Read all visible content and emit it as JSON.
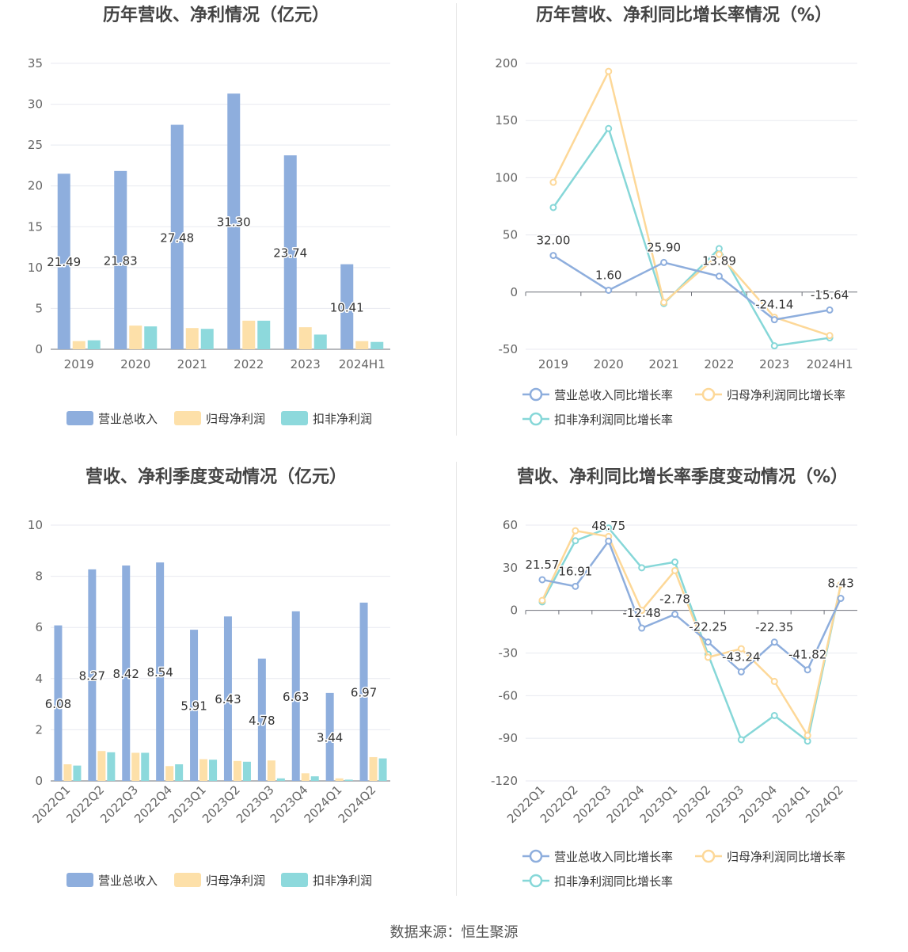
{
  "colors": {
    "revenue": "#8eaedd",
    "parent": "#fde0a9",
    "deducted": "#8dd9dc",
    "revenue_line": "#8eaedd",
    "parent_line": "#fdd898",
    "deducted_line": "#86d7d8"
  },
  "source_label": "数据来源：恒生聚源",
  "chart_data": [
    {
      "type": "bar",
      "title": "历年营收、净利情况（亿元）",
      "categories": [
        "2019",
        "2020",
        "2021",
        "2022",
        "2023",
        "2024H1"
      ],
      "ylim": [
        0,
        35
      ],
      "yticks": [
        0,
        5,
        10,
        15,
        20,
        25,
        30,
        35
      ],
      "legend": "bottom",
      "series": [
        {
          "name": "营业总收入",
          "values": [
            21.49,
            21.83,
            27.48,
            31.3,
            23.74,
            10.41
          ],
          "labels": [
            "21.49",
            "21.83",
            "27.48",
            "31.30",
            "23.74",
            "10.41"
          ]
        },
        {
          "name": "归母净利润",
          "values": [
            1.0,
            2.9,
            2.6,
            3.5,
            2.7,
            1.0
          ]
        },
        {
          "name": "扣非净利润",
          "values": [
            1.1,
            2.8,
            2.5,
            3.5,
            1.8,
            0.9
          ]
        }
      ]
    },
    {
      "type": "line",
      "title": "历年营收、净利同比增长率情况（%）",
      "categories": [
        "2019",
        "2020",
        "2021",
        "2022",
        "2023",
        "2024H1"
      ],
      "ylim": [
        -50,
        200
      ],
      "yticks": [
        -50,
        0,
        50,
        100,
        150,
        200
      ],
      "legend": "bottom",
      "series": [
        {
          "name": "营业总收入同比增长率",
          "values": [
            32.0,
            1.6,
            25.9,
            13.89,
            -24.14,
            -15.64
          ],
          "labels": [
            "32.00",
            "1.60",
            "25.90",
            "13.89",
            "-24.14",
            "-15.64"
          ]
        },
        {
          "name": "归母净利润同比增长率",
          "values": [
            96,
            193,
            -9,
            33,
            -22,
            -38
          ]
        },
        {
          "name": "扣非净利润同比增长率",
          "values": [
            74,
            143,
            -10,
            38,
            -47,
            -40
          ]
        }
      ]
    },
    {
      "type": "bar",
      "title": "营收、净利季度变动情况（亿元）",
      "categories": [
        "2022Q1",
        "2022Q2",
        "2022Q3",
        "2022Q4",
        "2023Q1",
        "2023Q2",
        "2023Q3",
        "2023Q4",
        "2024Q1",
        "2024Q2"
      ],
      "ylim": [
        0,
        10
      ],
      "yticks": [
        0,
        2,
        4,
        6,
        8,
        10
      ],
      "legend": "bottom",
      "series": [
        {
          "name": "营业总收入",
          "values": [
            6.08,
            8.27,
            8.42,
            8.54,
            5.91,
            6.43,
            4.78,
            6.63,
            3.44,
            6.97
          ],
          "labels": [
            "6.08",
            "8.27",
            "8.42",
            "8.54",
            "5.91",
            "6.43",
            "4.78",
            "6.63",
            "3.44",
            "6.97"
          ]
        },
        {
          "name": "归母净利润",
          "values": [
            0.65,
            1.17,
            1.1,
            0.58,
            0.85,
            0.78,
            0.8,
            0.3,
            0.1,
            0.93
          ]
        },
        {
          "name": "扣非净利润",
          "values": [
            0.6,
            1.12,
            1.1,
            0.65,
            0.83,
            0.75,
            0.1,
            0.18,
            0.05,
            0.88
          ]
        }
      ]
    },
    {
      "type": "line",
      "title": "营收、净利同比增长率季度变动情况（%）",
      "categories": [
        "2022Q1",
        "2022Q2",
        "2022Q3",
        "2022Q4",
        "2023Q1",
        "2023Q2",
        "2023Q3",
        "2023Q4",
        "2024Q1",
        "2024Q2"
      ],
      "ylim": [
        -120,
        60
      ],
      "yticks": [
        -120,
        -90,
        -60,
        -30,
        0,
        30,
        60
      ],
      "legend": "bottom",
      "series": [
        {
          "name": "营业总收入同比增长率",
          "values": [
            21.57,
            16.91,
            48.75,
            -12.48,
            -2.78,
            -22.25,
            -43.24,
            -22.35,
            -41.82,
            8.43
          ],
          "labels": [
            "21.57",
            "16.91",
            "48.75",
            "-12.48",
            "-2.78",
            "-22.25",
            "-43.24",
            "-22.35",
            "-41.82",
            "8.43"
          ]
        },
        {
          "name": "归母净利润同比增长率",
          "values": [
            7,
            56,
            52,
            0,
            28,
            -33,
            -27,
            -50,
            -88,
            18
          ]
        },
        {
          "name": "扣非净利润同比增长率",
          "values": [
            6,
            49,
            58,
            30,
            34,
            -31,
            -91,
            -74,
            -92,
            18
          ]
        }
      ]
    }
  ]
}
